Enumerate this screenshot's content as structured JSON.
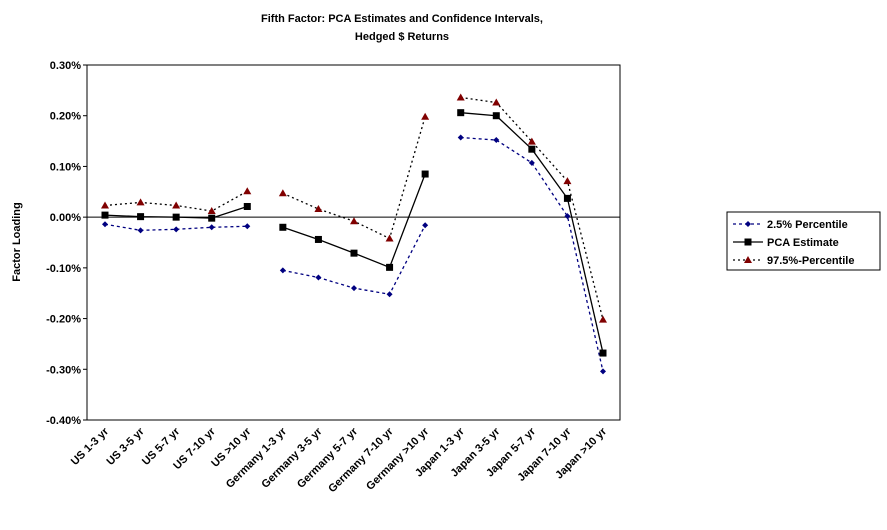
{
  "chart_data": {
    "type": "line",
    "title": [
      "Fifth Factor: PCA Estimates and Confidence Intervals,",
      "Hedged $ Returns"
    ],
    "y_label": "Factor Loading",
    "categories": [
      "US 1-3 yr",
      "US 3-5 yr",
      "US 5-7 yr",
      "US 7-10 yr",
      "US >10 yr",
      "Germany 1-3 yr",
      "Germany 3-5 yr",
      "Germany 5-7 yr",
      "Germany 7-10 yr",
      "Germany >10 yr",
      "Japan 1-3 yr",
      "Japan 3-5 yr",
      "Japan 5-7 yr",
      "Japan 7-10 yr",
      "Japan >10 yr"
    ],
    "breaks": [
      5,
      10
    ],
    "series": [
      {
        "name": "2.5% Percentile",
        "color": "#000080",
        "marker_color": "#000080",
        "marker": "diamond",
        "dash": "3,3",
        "values": [
          -0.014,
          -0.026,
          -0.024,
          -0.02,
          -0.018,
          -0.105,
          -0.119,
          -0.14,
          -0.152,
          -0.016,
          0.157,
          0.152,
          0.107,
          0.002,
          -0.304
        ]
      },
      {
        "name": "PCA Estimate",
        "color": "#000000",
        "marker_color": "#000000",
        "marker": "square",
        "dash": "none",
        "values": [
          0.004,
          0.001,
          0.0,
          -0.002,
          0.021,
          -0.02,
          -0.044,
          -0.071,
          -0.099,
          0.085,
          0.206,
          0.2,
          0.134,
          0.037,
          -0.268
        ]
      },
      {
        "name": "97.5%-Percentile",
        "color": "#000000",
        "marker_color": "#800000",
        "marker": "triangle",
        "dash": "2,3",
        "values": [
          0.023,
          0.029,
          0.023,
          0.012,
          0.051,
          0.047,
          0.016,
          -0.008,
          -0.042,
          0.198,
          0.236,
          0.226,
          0.149,
          0.071,
          -0.202
        ]
      }
    ],
    "ylim": [
      -0.4,
      0.3
    ],
    "yticks": [
      {
        "value": -0.4,
        "label": "-0.40%"
      },
      {
        "value": -0.3,
        "label": "-0.30%"
      },
      {
        "value": -0.2,
        "label": "-0.20%"
      },
      {
        "value": -0.1,
        "label": "-0.10%"
      },
      {
        "value": 0,
        "label": "0.00%"
      },
      {
        "value": 0.1,
        "label": "0.10%"
      },
      {
        "value": 0.2,
        "label": "0.20%"
      },
      {
        "value": 0.3,
        "label": "0.30%"
      }
    ],
    "zero_line": true,
    "legend": "right"
  }
}
